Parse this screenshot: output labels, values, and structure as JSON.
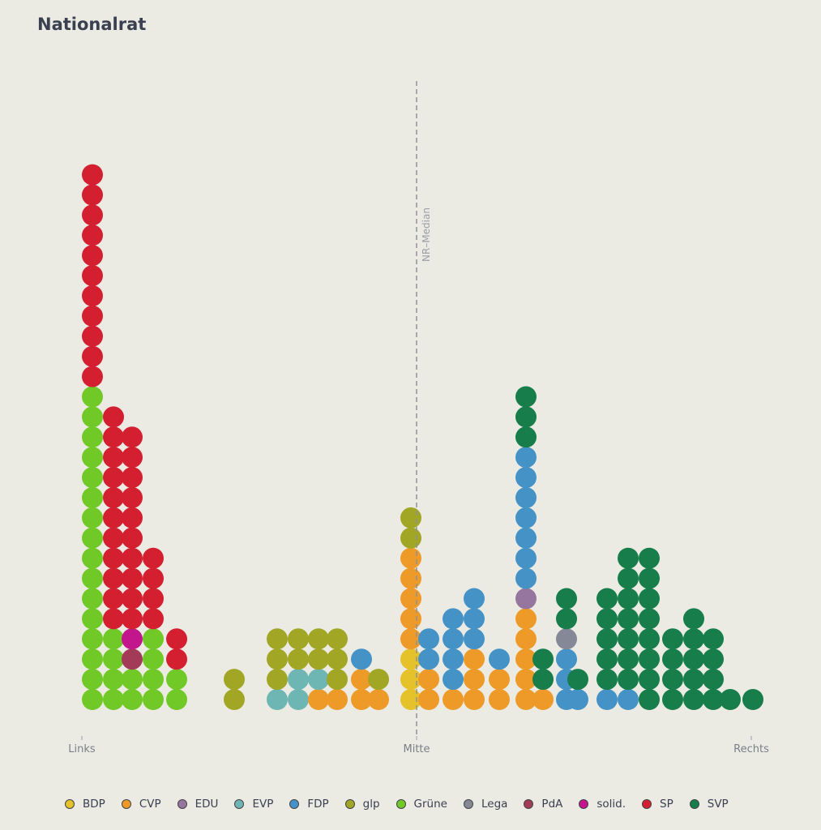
{
  "chart_data": {
    "type": "dot_strip",
    "title": "Nationalrat",
    "x_ticks": [
      "Links",
      "Mitte",
      "Rechts"
    ],
    "median_label": "NR–Median",
    "legend": [
      {
        "name": "BDP",
        "color": "#e5c12a"
      },
      {
        "name": "CVP",
        "color": "#ee9a29"
      },
      {
        "name": "EDU",
        "color": "#96769e"
      },
      {
        "name": "EVP",
        "color": "#6db6b4"
      },
      {
        "name": "FDP",
        "color": "#4593c6"
      },
      {
        "name": "glp",
        "color": "#a1a624"
      },
      {
        "name": "Grüne",
        "color": "#71c927"
      },
      {
        "name": "Lega",
        "color": "#858896"
      },
      {
        "name": "PdA",
        "color": "#a33a58"
      },
      {
        "name": "solid.",
        "color": "#c4168c"
      },
      {
        "name": "SP",
        "color": "#d41f31"
      },
      {
        "name": "SVP",
        "color": "#167d4b"
      }
    ],
    "stacks": [
      [
        "Grüne",
        "Grüne",
        "Grüne",
        "Grüne",
        "Grüne",
        "Grüne",
        "Grüne",
        "Grüne",
        "Grüne",
        "Grüne",
        "Grüne",
        "Grüne",
        "Grüne",
        "Grüne",
        "Grüne",
        "Grüne",
        "SP",
        "SP",
        "SP",
        "SP",
        "SP",
        "SP",
        "SP",
        "SP",
        "SP",
        "SP",
        "SP"
      ],
      [
        "Grüne",
        "Grüne",
        "Grüne",
        "Grüne",
        "SP",
        "SP",
        "SP",
        "SP",
        "SP",
        "SP",
        "SP",
        "SP",
        "SP",
        "SP",
        "SP"
      ],
      [
        "Grüne",
        "Grüne",
        "PdA",
        "solid.",
        "SP",
        "SP",
        "SP",
        "SP",
        "SP",
        "SP",
        "SP",
        "SP",
        "SP",
        "SP"
      ],
      [
        "Grüne",
        "Grüne",
        "Grüne",
        "Grüne",
        "SP",
        "SP",
        "SP",
        "SP"
      ],
      [
        "Grüne",
        "Grüne",
        "SP",
        "SP"
      ],
      [
        "glp",
        "glp"
      ],
      [
        "EVP",
        "glp",
        "glp",
        "glp"
      ],
      [
        "EVP",
        "EVP",
        "glp",
        "glp"
      ],
      [
        "CVP",
        "EVP",
        "glp",
        "glp"
      ],
      [
        "CVP",
        "glp",
        "glp",
        "glp"
      ],
      [
        "CVP",
        "CVP",
        "FDP"
      ],
      [
        "CVP",
        "glp"
      ],
      [
        "BDP",
        "BDP",
        "BDP",
        "CVP",
        "CVP",
        "CVP",
        "CVP",
        "CVP",
        "glp",
        "glp"
      ],
      [
        "CVP",
        "CVP",
        "FDP",
        "FDP"
      ],
      [
        "CVP",
        "FDP",
        "FDP",
        "FDP",
        "FDP"
      ],
      [
        "CVP",
        "CVP",
        "CVP",
        "FDP",
        "FDP",
        "FDP"
      ],
      [
        "CVP",
        "CVP",
        "FDP"
      ],
      [
        "CVP",
        "CVP",
        "CVP",
        "CVP",
        "CVP",
        "EDU",
        "FDP",
        "FDP",
        "FDP",
        "FDP",
        "FDP",
        "FDP",
        "FDP",
        "SVP",
        "SVP",
        "SVP"
      ],
      [
        "CVP",
        "SVP",
        "SVP"
      ],
      [
        "FDP",
        "FDP",
        "FDP",
        "Lega",
        "SVP",
        "SVP"
      ],
      [
        "FDP",
        "SVP"
      ],
      [
        "FDP",
        "SVP",
        "SVP",
        "SVP",
        "SVP",
        "SVP"
      ],
      [
        "FDP",
        "SVP",
        "SVP",
        "SVP",
        "SVP",
        "SVP",
        "SVP",
        "SVP"
      ],
      [
        "SVP",
        "SVP",
        "SVP",
        "SVP",
        "SVP",
        "SVP",
        "SVP",
        "SVP"
      ],
      [
        "SVP",
        "SVP",
        "SVP",
        "SVP"
      ],
      [
        "SVP",
        "SVP",
        "SVP",
        "SVP",
        "SVP"
      ],
      [
        "SVP",
        "SVP",
        "SVP",
        "SVP"
      ],
      [
        "SVP"
      ],
      [
        "SVP"
      ]
    ]
  }
}
